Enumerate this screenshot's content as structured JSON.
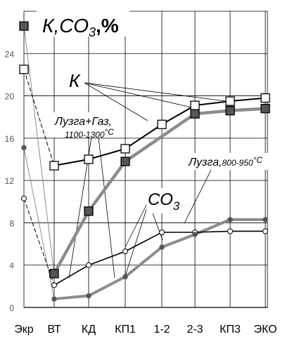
{
  "chart_data": {
    "type": "line",
    "title": "К,СО",
    "title_sub": "3",
    "title_unit": ",%",
    "categories": [
      "Экр",
      "ВТ",
      "КД",
      "КП1",
      "1-2",
      "2-3",
      "КП3",
      "ЭКО"
    ],
    "ylim": [
      0,
      28
    ],
    "yticks": [
      0,
      4,
      8,
      12,
      16,
      20,
      24
    ],
    "grid": true,
    "series": [
      {
        "name": "К Лузга+Газ",
        "style": "black-squares",
        "values": [
          22.5,
          13.4,
          14.0,
          15.0,
          17.3,
          19.1,
          19.5,
          19.8
        ]
      },
      {
        "name": "К Лузга",
        "style": "gray-filled-squares",
        "values": [
          26.6,
          3.2,
          9.1,
          13.8,
          null,
          18.3,
          18.6,
          18.8
        ]
      },
      {
        "name": "СО3 Лузга+Газ",
        "style": "black-circles",
        "values": [
          10.3,
          2.1,
          4.0,
          5.3,
          7.1,
          7.1,
          7.2,
          7.2
        ]
      },
      {
        "name": "СО3 Лузга",
        "style": "gray-dots",
        "values": [
          15.1,
          0.8,
          1.1,
          2.9,
          5.7,
          6.9,
          8.3,
          8.3
        ]
      }
    ],
    "annotations": {
      "k_label": "К",
      "co3_label": "СО",
      "co3_sub": "3",
      "husk_gas_label": "Лузга+Газ,",
      "husk_gas_temp": "1100-1300",
      "husk_label": "Лузга,",
      "husk_temp": "800-950",
      "deg_c": "°С"
    },
    "colors": {
      "black": "#000000",
      "gray": "#8c8c8c",
      "dark_marker": "#555555",
      "grid": "#000000"
    }
  }
}
